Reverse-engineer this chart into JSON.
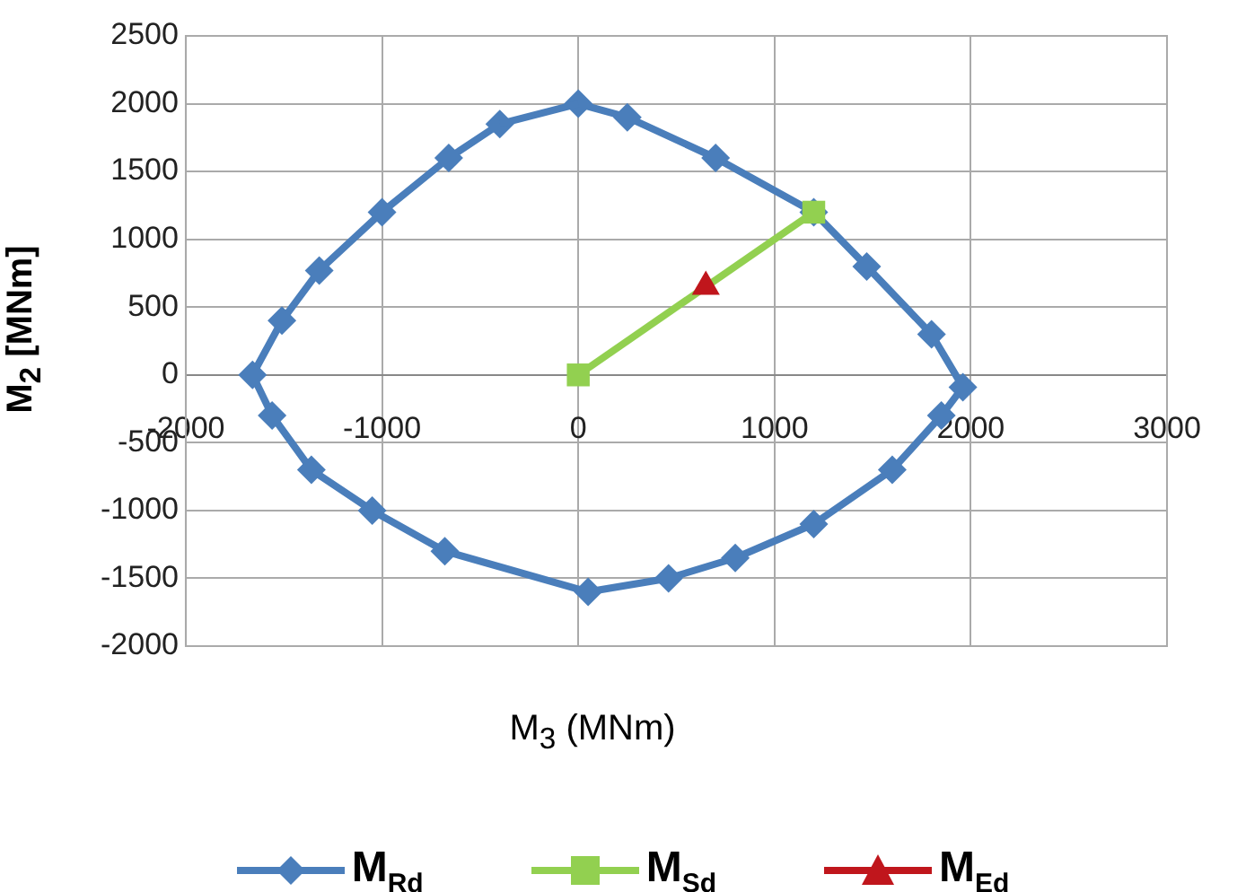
{
  "chart_data": {
    "type": "line",
    "xlabel": "M$_{3}$ (MNm)",
    "ylabel": "M$_{2}$ [MNm]",
    "xlim": [
      -2000,
      3000
    ],
    "xticks": [
      -2000,
      -1000,
      0,
      1000,
      2000,
      3000
    ],
    "ylim": [
      -2000,
      2500
    ],
    "yticks": [
      -2000,
      -1500,
      -1000,
      -500,
      0,
      500,
      1000,
      1500,
      2000,
      2500
    ],
    "grid": true,
    "legend": "bottom",
    "line_style": "solid",
    "series": [
      {
        "name": "M$_{Rd}$",
        "color": "#4a7ebb",
        "marker": "diamond",
        "x": [
          0,
          250,
          700,
          1200,
          1470,
          1800,
          1960,
          1850,
          1600,
          1200,
          800,
          460,
          50,
          -680,
          -1050,
          -1360,
          -1560,
          -1660,
          -1510,
          -1320,
          -1000,
          -660,
          -400
        ],
        "values": [
          2000,
          1900,
          1600,
          1200,
          800,
          300,
          -90,
          -300,
          -700,
          -1100,
          -1350,
          -1500,
          -1600,
          -1300,
          -1000,
          -700,
          -300,
          0,
          400,
          770,
          1200,
          1600,
          1850
        ]
      },
      {
        "color": "#4a7ebb",
        "marker": "none",
        "x": [
          -400,
          0
        ],
        "values": [
          1850,
          2000
        ]
      },
      {
        "name": "M$_{Sd}$",
        "color": "#92d050",
        "marker": "square",
        "x": [
          0,
          1200
        ],
        "values": [
          0,
          1200
        ]
      },
      {
        "name": "M$_{Ed}$",
        "color": "#c0161c",
        "marker": "triangle",
        "x": [
          650
        ],
        "values": [
          650
        ]
      }
    ]
  }
}
